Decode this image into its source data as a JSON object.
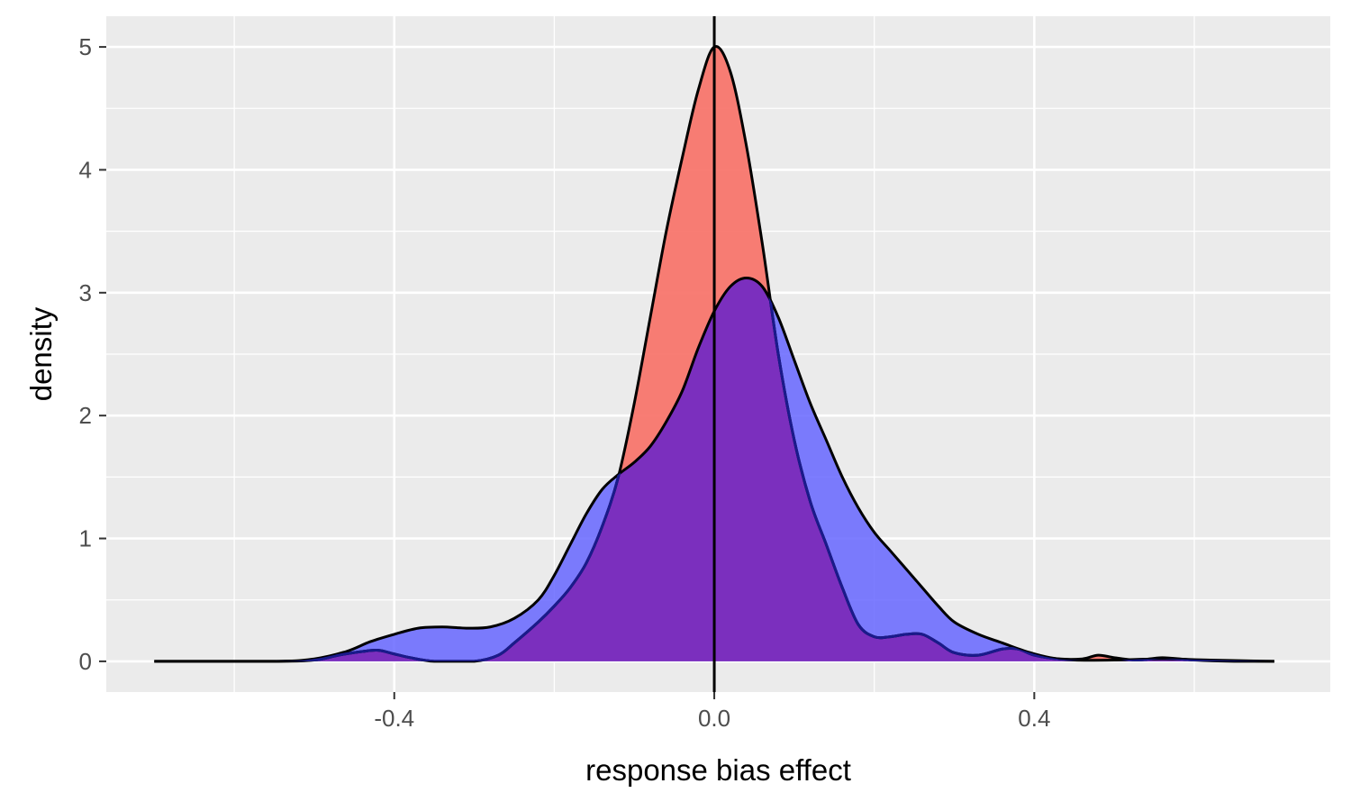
{
  "chart_data": {
    "type": "area",
    "xlabel": "response bias effect",
    "ylabel": "density",
    "xlim": [
      -0.76,
      0.77
    ],
    "ylim": [
      -0.25,
      5.25
    ],
    "x_ticks": [
      -0.4,
      0.0,
      0.4
    ],
    "x_tick_labels": [
      "-0.4",
      "0.0",
      "0.4"
    ],
    "x_minor_ticks": [
      -0.6,
      -0.2,
      0.2,
      0.6
    ],
    "y_ticks": [
      0,
      1,
      2,
      3,
      4,
      5
    ],
    "y_tick_labels": [
      "0",
      "1",
      "2",
      "3",
      "4",
      "5"
    ],
    "y_minor_ticks": [
      0.5,
      1.5,
      2.5,
      3.5,
      4.5
    ],
    "grid": true,
    "legend": "none",
    "vline": {
      "x": 0.0,
      "color": "#000000"
    },
    "panel_background": "#ebebeb",
    "series": [
      {
        "fill": "#f8766d",
        "fill_opacity": 0.95,
        "stroke": "#000000",
        "points": [
          [
            -0.7,
            0.0
          ],
          [
            -0.55,
            0.0
          ],
          [
            -0.5,
            0.01
          ],
          [
            -0.47,
            0.05
          ],
          [
            -0.44,
            0.08
          ],
          [
            -0.42,
            0.09
          ],
          [
            -0.4,
            0.06
          ],
          [
            -0.38,
            0.03
          ],
          [
            -0.35,
            0.0
          ],
          [
            -0.3,
            0.0
          ],
          [
            -0.27,
            0.05
          ],
          [
            -0.25,
            0.15
          ],
          [
            -0.22,
            0.32
          ],
          [
            -0.2,
            0.45
          ],
          [
            -0.18,
            0.6
          ],
          [
            -0.16,
            0.8
          ],
          [
            -0.14,
            1.1
          ],
          [
            -0.12,
            1.5
          ],
          [
            -0.1,
            2.1
          ],
          [
            -0.08,
            2.8
          ],
          [
            -0.06,
            3.5
          ],
          [
            -0.04,
            4.1
          ],
          [
            -0.02,
            4.65
          ],
          [
            0.0,
            5.0
          ],
          [
            0.02,
            4.8
          ],
          [
            0.04,
            4.2
          ],
          [
            0.06,
            3.4
          ],
          [
            0.08,
            2.5
          ],
          [
            0.1,
            1.8
          ],
          [
            0.12,
            1.3
          ],
          [
            0.14,
            0.95
          ],
          [
            0.16,
            0.6
          ],
          [
            0.18,
            0.3
          ],
          [
            0.2,
            0.2
          ],
          [
            0.22,
            0.2
          ],
          [
            0.24,
            0.22
          ],
          [
            0.26,
            0.22
          ],
          [
            0.28,
            0.15
          ],
          [
            0.3,
            0.07
          ],
          [
            0.33,
            0.05
          ],
          [
            0.36,
            0.1
          ],
          [
            0.38,
            0.1
          ],
          [
            0.4,
            0.05
          ],
          [
            0.43,
            0.02
          ],
          [
            0.46,
            0.02
          ],
          [
            0.48,
            0.05
          ],
          [
            0.5,
            0.03
          ],
          [
            0.53,
            0.01
          ],
          [
            0.56,
            0.03
          ],
          [
            0.6,
            0.01
          ],
          [
            0.65,
            0.0
          ],
          [
            0.7,
            0.0
          ]
        ]
      },
      {
        "fill": "#6666ff",
        "fill_opacity": 0.85,
        "stroke": "#000000",
        "points": [
          [
            -0.7,
            0.0
          ],
          [
            -0.55,
            0.0
          ],
          [
            -0.5,
            0.02
          ],
          [
            -0.46,
            0.08
          ],
          [
            -0.43,
            0.16
          ],
          [
            -0.4,
            0.22
          ],
          [
            -0.37,
            0.27
          ],
          [
            -0.34,
            0.28
          ],
          [
            -0.31,
            0.27
          ],
          [
            -0.28,
            0.28
          ],
          [
            -0.25,
            0.35
          ],
          [
            -0.22,
            0.5
          ],
          [
            -0.2,
            0.7
          ],
          [
            -0.18,
            0.95
          ],
          [
            -0.16,
            1.2
          ],
          [
            -0.14,
            1.4
          ],
          [
            -0.12,
            1.52
          ],
          [
            -0.1,
            1.62
          ],
          [
            -0.08,
            1.75
          ],
          [
            -0.06,
            1.95
          ],
          [
            -0.04,
            2.2
          ],
          [
            -0.02,
            2.55
          ],
          [
            0.0,
            2.85
          ],
          [
            0.02,
            3.05
          ],
          [
            0.04,
            3.12
          ],
          [
            0.06,
            3.05
          ],
          [
            0.08,
            2.8
          ],
          [
            0.1,
            2.45
          ],
          [
            0.12,
            2.1
          ],
          [
            0.14,
            1.8
          ],
          [
            0.16,
            1.5
          ],
          [
            0.18,
            1.25
          ],
          [
            0.2,
            1.05
          ],
          [
            0.22,
            0.9
          ],
          [
            0.24,
            0.75
          ],
          [
            0.26,
            0.6
          ],
          [
            0.28,
            0.45
          ],
          [
            0.3,
            0.32
          ],
          [
            0.33,
            0.22
          ],
          [
            0.36,
            0.15
          ],
          [
            0.39,
            0.08
          ],
          [
            0.42,
            0.03
          ],
          [
            0.45,
            0.01
          ],
          [
            0.5,
            0.01
          ],
          [
            0.56,
            0.02
          ],
          [
            0.62,
            0.01
          ],
          [
            0.7,
            0.0
          ]
        ]
      }
    ],
    "overlap_color": "#7b2fbe"
  }
}
